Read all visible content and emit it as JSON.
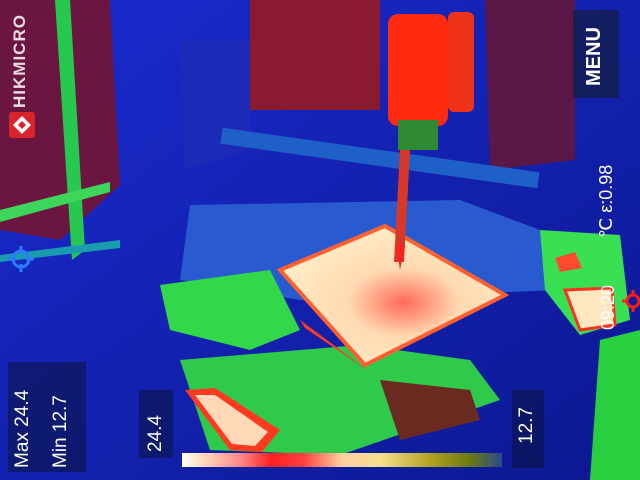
{
  "brand": {
    "name": "HIKMICRO"
  },
  "menu": {
    "label": "MENU"
  },
  "status": {
    "line": "℃ ε:0.98",
    "time": "09:20"
  },
  "stats": {
    "max": "Max 24.4",
    "min": "Min 12.7"
  },
  "scale": {
    "high": "24.4",
    "low": "12.7"
  },
  "colors": {
    "background": "#0a1aa8",
    "hot": "#ff2a10",
    "warm": "#fff3c8",
    "mid": "#28d22a"
  },
  "icons": {
    "target": "crosshair-icon",
    "spot": "spot-marker-icon",
    "logo": "hikmicro-logo-icon"
  }
}
